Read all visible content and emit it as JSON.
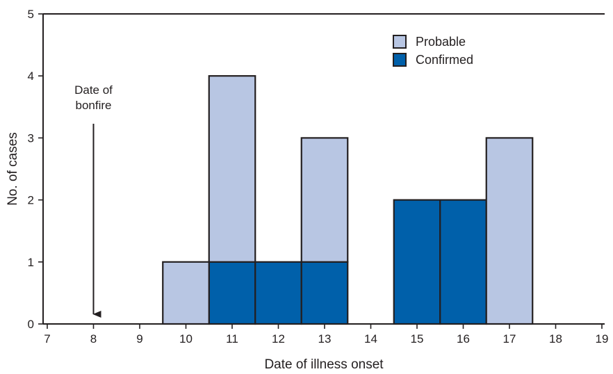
{
  "chart_data": {
    "type": "bar",
    "stacked": true,
    "x": [
      7,
      8,
      9,
      10,
      11,
      12,
      13,
      14,
      15,
      16,
      17,
      18,
      19
    ],
    "xlabel": "Date of illness onset",
    "ylabel": "No. of cases",
    "xlim": [
      7,
      19
    ],
    "ylim": [
      0,
      5
    ],
    "yticks": [
      0,
      1,
      2,
      3,
      4,
      5
    ],
    "series": [
      {
        "name": "Confirmed",
        "color": "#0060aa",
        "x": [
          11,
          12,
          13,
          15,
          16
        ],
        "values": [
          1,
          1,
          1,
          2,
          2
        ]
      },
      {
        "name": "Probable",
        "color": "#b8c6e3",
        "x": [
          10,
          11,
          13,
          17
        ],
        "values": [
          1,
          3,
          2,
          3
        ]
      }
    ],
    "legend": {
      "position": "top-right",
      "order": [
        "Probable",
        "Confirmed"
      ]
    },
    "annotation": {
      "text_lines": [
        "Date of",
        "bonfire"
      ],
      "x": 8,
      "arrow": "down"
    },
    "grid": false
  }
}
